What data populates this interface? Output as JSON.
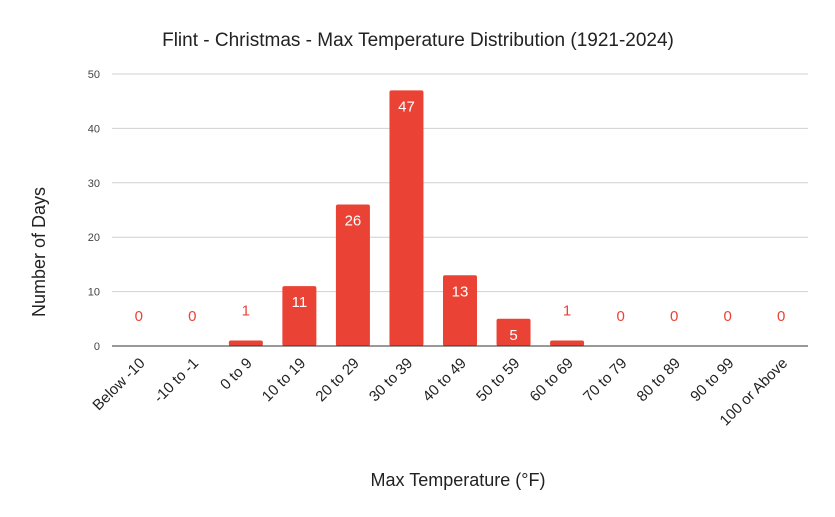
{
  "chart_data": {
    "type": "bar",
    "title": "Flint - Christmas - Max Temperature Distribution (1921-2024)",
    "xlabel": "Max Temperature (°F)",
    "ylabel": "Number of Days",
    "categories": [
      "Below -10",
      "-10 to -1",
      "0 to 9",
      "10 to 19",
      "20 to 29",
      "30 to 39",
      "40 to 49",
      "50 to 59",
      "60 to 69",
      "70 to 79",
      "80 to 89",
      "90 to 99",
      "100 or Above"
    ],
    "values": [
      0,
      0,
      1,
      11,
      26,
      47,
      13,
      5,
      1,
      0,
      0,
      0,
      0
    ],
    "data_labels": [
      "0",
      "0",
      "1",
      "11",
      "26",
      "47",
      "13",
      "5",
      "1",
      "0",
      "0",
      "0",
      "0"
    ],
    "yticks": [
      "0",
      "10",
      "20",
      "30",
      "40",
      "50"
    ],
    "ylim": [
      0,
      50
    ],
    "grid": true,
    "legend": "none",
    "bar_color": "#ea4335",
    "label_inside_color": "#ffffff"
  }
}
